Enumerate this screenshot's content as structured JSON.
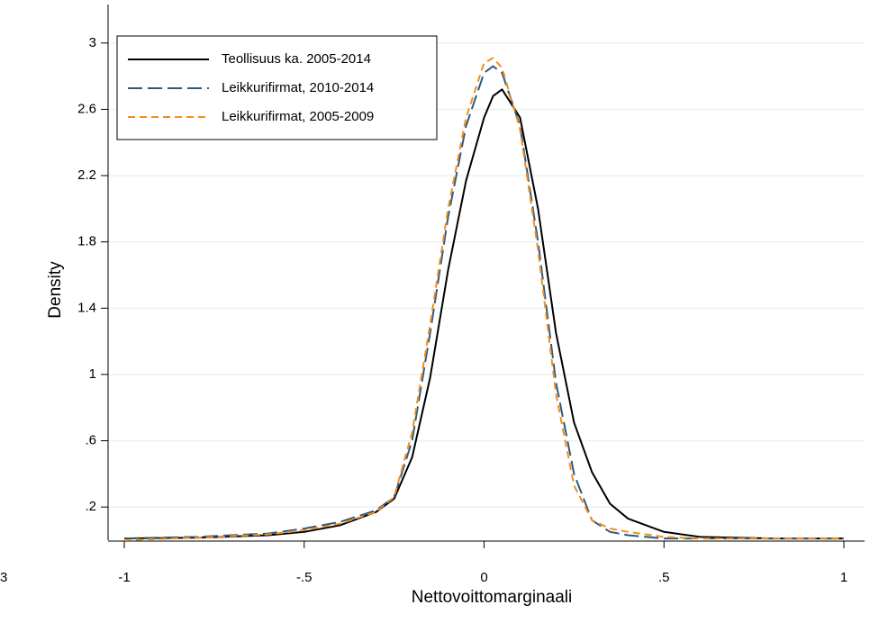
{
  "chart_data": {
    "type": "line",
    "x_label": "Nettovoittomarginaali",
    "y_label": "Density",
    "annotations": [
      {
        "text": "3"
      }
    ],
    "x": [
      -1,
      -0.8,
      -0.6,
      -0.5,
      -0.4,
      -0.3,
      -0.25,
      -0.2,
      -0.15,
      -0.1,
      -0.05,
      0,
      0.025,
      0.05,
      0.1,
      0.15,
      0.2,
      0.25,
      0.3,
      0.35,
      0.4,
      0.5,
      0.6,
      0.8,
      1
    ],
    "series": [
      {
        "name": "Teollisuus ka. 2005-2014",
        "color": "#000000",
        "dash": "solid",
        "values": [
          0.01,
          0.015,
          0.03,
          0.05,
          0.09,
          0.17,
          0.25,
          0.5,
          0.98,
          1.63,
          2.17,
          2.55,
          2.68,
          2.72,
          2.55,
          2.0,
          1.25,
          0.71,
          0.41,
          0.22,
          0.13,
          0.05,
          0.02,
          0.01,
          0.01
        ]
      },
      {
        "name": "Leikkurifirmat, 2010-2014",
        "color": "#2a5a80",
        "dash": "long",
        "values": [
          0.01,
          0.02,
          0.04,
          0.07,
          0.11,
          0.18,
          0.26,
          0.6,
          1.25,
          1.95,
          2.5,
          2.82,
          2.86,
          2.82,
          2.5,
          1.8,
          0.95,
          0.4,
          0.12,
          0.05,
          0.03,
          0.01,
          0.01,
          0.01,
          0.01
        ]
      },
      {
        "name": "Leikkurifirmat, 2005-2009",
        "color": "#f28e1c",
        "dash": "short",
        "values": [
          0.0,
          0.015,
          0.035,
          0.06,
          0.1,
          0.17,
          0.26,
          0.65,
          1.3,
          2.0,
          2.55,
          2.88,
          2.91,
          2.85,
          2.48,
          1.75,
          0.88,
          0.33,
          0.12,
          0.07,
          0.05,
          0.02,
          0.01,
          0.01,
          0.01
        ]
      }
    ],
    "xlim": [
      -1,
      1
    ],
    "xticks": [
      -1,
      {
        "value": -0.5,
        "label": "-.5"
      },
      0,
      {
        "value": 0.5,
        "label": ".5"
      },
      1
    ],
    "ylim": [
      0,
      3.2
    ],
    "yticks": [
      {
        "value": 0.2,
        "label": ".2"
      },
      {
        "value": 0.6,
        "label": ".6"
      },
      1,
      1.4,
      1.8,
      2.2,
      2.6,
      3
    ],
    "grid": true,
    "legend": "top-left"
  }
}
